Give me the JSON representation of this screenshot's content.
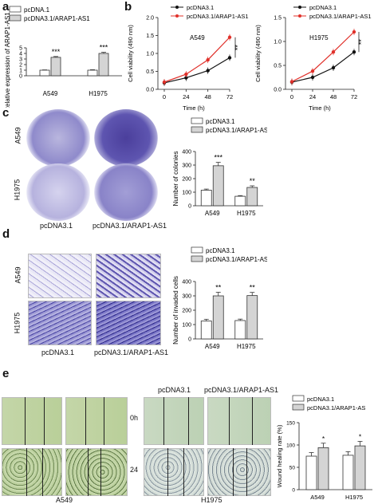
{
  "panels": {
    "a": "a",
    "b": "b",
    "c": "c",
    "d": "d",
    "e": "e"
  },
  "colors": {
    "control": "#ffffff",
    "treated": "#d4d4d4",
    "line_control": "#111111",
    "line_treated": "#e0302a",
    "crystal_violet_dark": "#4b3f9c",
    "crystal_violet_light": "#b9b6de",
    "wound_green": "#b7cf9a"
  },
  "panel_c_images": {
    "col_labels": [
      "pcDNA3.1",
      "pcDNA3.1/ARAP1-AS1"
    ],
    "row_labels": [
      "A549",
      "H1975"
    ]
  },
  "panel_d_images": {
    "col_labels": [
      "pcDNA3.1",
      "pcDNA3.1/ARAP1-AS1"
    ],
    "row_labels": [
      "A549",
      "H1975"
    ]
  },
  "panel_e_images": {
    "time_labels": [
      "0h",
      "24"
    ],
    "group_labels": [
      "A549",
      "H1975"
    ],
    "col_labels_h1975": [
      "pcDNA3.1",
      "pcDNA3.1/ARAP1-AS1"
    ]
  },
  "chart_data": [
    {
      "id": "a",
      "type": "bar",
      "categories": [
        "A549",
        "H1975"
      ],
      "series": [
        {
          "name": "pcDNA.1",
          "values": [
            1.0,
            1.0
          ],
          "errors": [
            0.05,
            0.08
          ]
        },
        {
          "name": "pcDNA3.1/ARAP1-AS1",
          "values": [
            3.3,
            4.0
          ],
          "errors": [
            0.15,
            0.2
          ]
        }
      ],
      "ylabel": "Relative expression of ARAP1-AS1",
      "ylim": [
        0,
        5
      ],
      "yticks": [
        0,
        1,
        2,
        3,
        4,
        5
      ],
      "significance": [
        "***",
        "***"
      ],
      "legend": "top-left",
      "grid": false
    },
    {
      "id": "b1",
      "type": "line",
      "x": [
        0,
        24,
        48,
        72
      ],
      "xticks": [
        "0",
        "24",
        "48",
        "72"
      ],
      "series": [
        {
          "name": "pcDNA3.1",
          "values": [
            0.18,
            0.32,
            0.52,
            0.88
          ]
        },
        {
          "name": "pcDNA3.1/ARAP1-AS1",
          "values": [
            0.2,
            0.42,
            0.82,
            1.45
          ]
        }
      ],
      "annotation": "A549",
      "xlabel": "Time (h)",
      "ylabel": "Cell viability (490 nm)",
      "ylim": [
        0,
        2.0
      ],
      "yticks": [
        "0.0",
        "0.5",
        "1.0",
        "1.5",
        "2.0"
      ],
      "significance": "**",
      "legend": "top-left",
      "grid": false
    },
    {
      "id": "b2",
      "type": "line",
      "x": [
        0,
        24,
        48,
        72
      ],
      "xticks": [
        "0",
        "24",
        "48",
        "72"
      ],
      "series": [
        {
          "name": "pcDNA3.1",
          "values": [
            0.15,
            0.25,
            0.45,
            0.78
          ]
        },
        {
          "name": "pcDNA3.1/ARAP1-AS1",
          "values": [
            0.16,
            0.38,
            0.78,
            1.2
          ]
        }
      ],
      "annotation": "H1975",
      "xlabel": "Time (h)",
      "ylabel": "Cell viability (490 nm)",
      "ylim": [
        0,
        1.5
      ],
      "yticks": [
        "0.0",
        "0.5",
        "1.0",
        "1.5"
      ],
      "significance": "**",
      "legend": "top-left",
      "grid": false
    },
    {
      "id": "c",
      "type": "bar",
      "categories": [
        "A549",
        "H1975"
      ],
      "series": [
        {
          "name": "pcDNA3.1",
          "values": [
            115,
            70
          ],
          "errors": [
            8,
            5
          ]
        },
        {
          "name": "pcDNA3.1/ARAP1-AS1",
          "values": [
            295,
            135
          ],
          "errors": [
            25,
            12
          ]
        }
      ],
      "ylabel": "Number of colonies",
      "ylim": [
        0,
        400
      ],
      "yticks": [
        0,
        100,
        200,
        300,
        400
      ],
      "significance": [
        "***",
        "**"
      ],
      "legend": "top-left",
      "grid": false
    },
    {
      "id": "d",
      "type": "bar",
      "categories": [
        "A549",
        "H1975"
      ],
      "series": [
        {
          "name": "pcDNA3.1",
          "values": [
            125,
            128
          ],
          "errors": [
            12,
            10
          ]
        },
        {
          "name": "pcDNA3.1/ARAP1-AS1",
          "values": [
            300,
            302
          ],
          "errors": [
            25,
            22
          ]
        }
      ],
      "ylabel": "Number of invaded cells",
      "ylim": [
        0,
        400
      ],
      "yticks": [
        0,
        100,
        200,
        300,
        400
      ],
      "significance": [
        "**",
        "**"
      ],
      "legend": "top-left",
      "grid": false
    },
    {
      "id": "e",
      "type": "bar",
      "categories": [
        "A549",
        "H1975"
      ],
      "series": [
        {
          "name": "pcDNA3.1",
          "values": [
            75,
            77
          ],
          "errors": [
            8,
            8
          ]
        },
        {
          "name": "pcDNA3.1/ARAP1-AS",
          "values": [
            94,
            98
          ],
          "errors": [
            10,
            10
          ]
        }
      ],
      "ylabel": "Wound healing rate (%)",
      "ylim": [
        0,
        150
      ],
      "yticks": [
        0,
        50,
        100,
        150
      ],
      "significance": [
        "*",
        "*"
      ],
      "legend": "top-left",
      "grid": false
    }
  ]
}
